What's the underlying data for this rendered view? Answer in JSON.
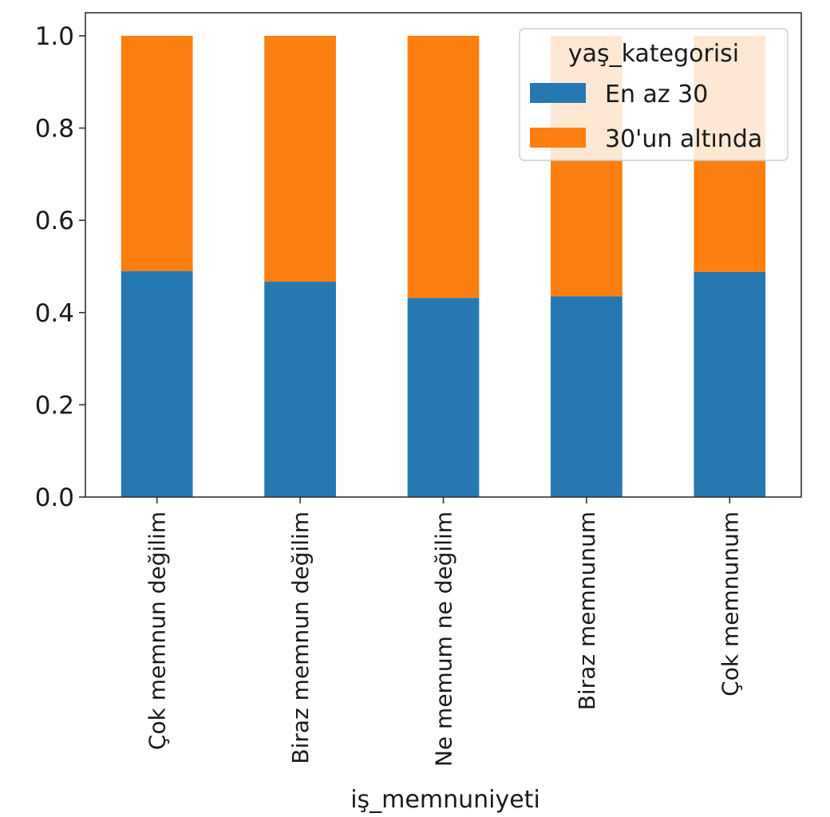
{
  "chart_data": {
    "type": "bar",
    "stacked": true,
    "title": "",
    "xlabel": "iş_memnuniyeti",
    "ylabel": "",
    "categories": [
      "Çok memnun değilim",
      "Biraz memnun değilim",
      "Ne memum ne değilim",
      "Biraz memnunum",
      "Çok memnunum"
    ],
    "series": [
      {
        "name": "En az 30",
        "values": [
          0.49,
          0.467,
          0.432,
          0.435,
          0.488
        ]
      },
      {
        "name": "30'un altında",
        "values": [
          0.51,
          0.533,
          0.568,
          0.565,
          0.512
        ]
      }
    ],
    "yticks": [
      "0.0",
      "0.2",
      "0.4",
      "0.6",
      "0.8",
      "1.0"
    ],
    "ytick_values": [
      0,
      0.2,
      0.4,
      0.6,
      0.8,
      1.0
    ],
    "ylim": [
      0,
      1.05
    ],
    "legend_title": "yaş_kategorisi",
    "legend_position": "top-right",
    "colors": [
      "#2678b2",
      "#fd7f0f"
    ]
  }
}
